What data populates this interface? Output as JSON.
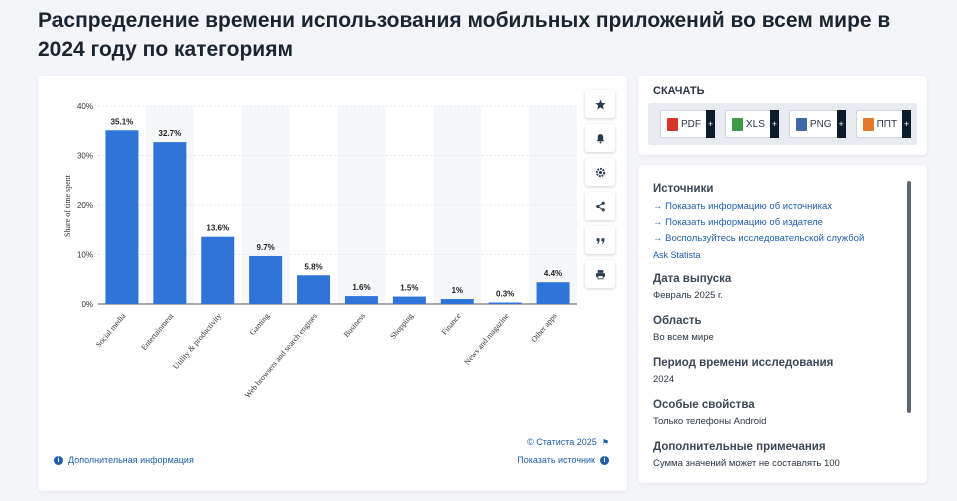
{
  "title": "Распределение времени использования мобильных приложений во всем мире в 2024 году по категориям",
  "chart_data": {
    "type": "bar",
    "categories": [
      "Social media",
      "Entertainment",
      "Utility & productivity",
      "Gaming",
      "Web browsers and search engines",
      "Business",
      "Shopping",
      "Finance",
      "News and magazine",
      "Other apps"
    ],
    "values": [
      35.1,
      32.7,
      13.6,
      9.7,
      5.8,
      1.6,
      1.5,
      1,
      0.3,
      4.4
    ],
    "data_labels": [
      "35.1%",
      "32.7%",
      "13.6%",
      "9.7%",
      "5.8%",
      "1.6%",
      "1.5%",
      "1%",
      "0.3%",
      "4.4%"
    ],
    "ylabel": "Share of time spent",
    "yticks": [
      "0%",
      "10%",
      "20%",
      "30%",
      "40%"
    ],
    "ylim": [
      0,
      40
    ],
    "bar_color": "#2f74d8",
    "grid": true
  },
  "chart_footer": {
    "copyright": "© Статиста 2025",
    "more_info": "Дополнительная информация",
    "show_source": "Показать источник"
  },
  "toolbar": {
    "icons": [
      "star-icon",
      "bell-icon",
      "gear-icon",
      "share-icon",
      "quote-icon",
      "print-icon"
    ]
  },
  "download": {
    "title": "СКАЧАТЬ",
    "buttons": [
      {
        "label": "PDF",
        "color": "#d9342b"
      },
      {
        "label": "XLS",
        "color": "#3d9b47"
      },
      {
        "label": "PNG",
        "color": "#3e6aa8"
      },
      {
        "label": "ППТ",
        "color": "#e07a2a"
      }
    ]
  },
  "info": {
    "sources_h": "Источники",
    "links": [
      "Показать информацию об источниках",
      "Показать информацию об издателе",
      "Воспользуйтесь исследовательской службой"
    ],
    "ask": "Ask Statista",
    "release_h": "Дата выпуска",
    "release_v": "Февраль 2025 г.",
    "region_h": "Область",
    "region_v": "Во всем мире",
    "period_h": "Период времени исследования",
    "period_v": "2024",
    "features_h": "Особые свойства",
    "features_v": "Только телефоны Android",
    "notes_h": "Дополнительные примечания",
    "notes_v": "Сумма значений может не составлять 100"
  }
}
